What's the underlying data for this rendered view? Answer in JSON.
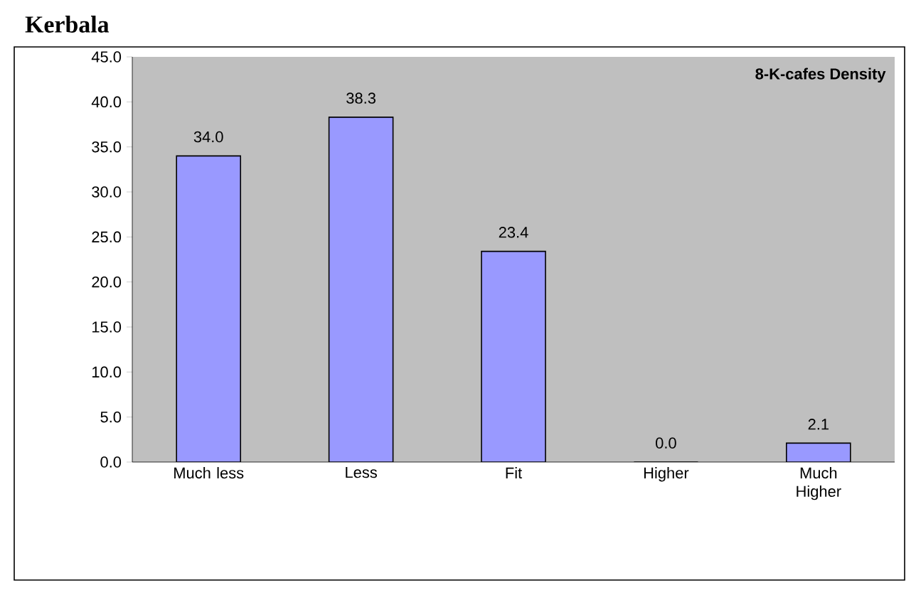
{
  "chart_data": {
    "type": "bar",
    "title": "Kerbala",
    "annotations": [
      "8-K-cafes Density"
    ],
    "categories": [
      "Much less",
      "Less",
      "Fit",
      "Higher",
      "Much Higher"
    ],
    "values": [
      34.0,
      38.3,
      23.4,
      0.0,
      2.1
    ],
    "value_labels": [
      "34.0",
      "38.3",
      "23.4",
      "0.0",
      "2.1"
    ],
    "color": "#9999ff",
    "ylim": [
      0,
      45
    ],
    "yticks": [
      {
        "value": 0,
        "label": "0.0"
      },
      {
        "value": 5,
        "label": "5.0"
      },
      {
        "value": 10,
        "label": "10.0"
      },
      {
        "value": 15,
        "label": "15.0"
      },
      {
        "value": 20,
        "label": "20.0"
      },
      {
        "value": 25,
        "label": "25.0"
      },
      {
        "value": 30,
        "label": "30.0"
      },
      {
        "value": 35,
        "label": "35.0"
      },
      {
        "value": 40,
        "label": "40.0"
      },
      {
        "value": 45,
        "label": "45.0"
      }
    ],
    "grid": false
  }
}
